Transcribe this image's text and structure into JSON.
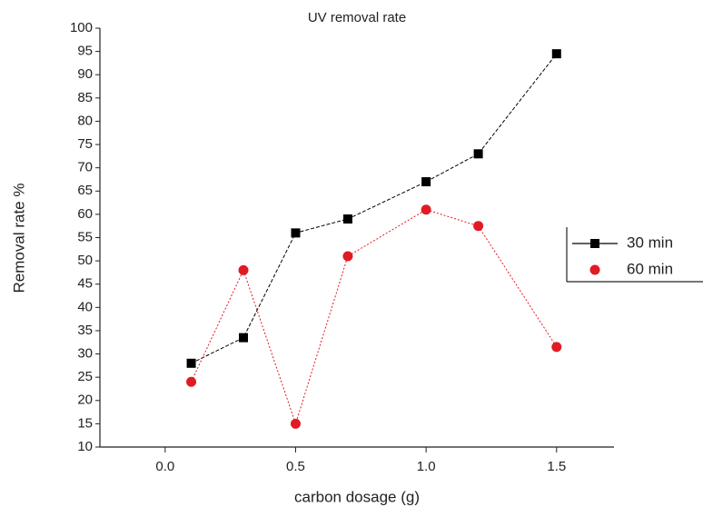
{
  "chart_data": {
    "type": "line",
    "title": "UV removal rate",
    "x_label": "carbon dosage (g)",
    "y_label": "Removal rate %",
    "x": [
      0.1,
      0.3,
      0.5,
      0.7,
      1.0,
      1.2,
      1.5
    ],
    "series": [
      {
        "name": "30 min",
        "color": "#000000",
        "marker": "square",
        "values": [
          28,
          33.5,
          56,
          59,
          67,
          73,
          94.5
        ]
      },
      {
        "name": "60 min",
        "color": "#e01b24",
        "marker": "circle",
        "values": [
          24,
          48,
          15,
          51,
          61,
          57.5,
          31.5
        ]
      }
    ],
    "xlim": [
      -0.25,
      1.72
    ],
    "xticks": [
      {
        "value": 0,
        "label": "0.0"
      },
      {
        "value": 0.5,
        "label": "0.5"
      },
      {
        "value": 1,
        "label": "1.0"
      },
      {
        "value": 1.5,
        "label": "1.5"
      }
    ],
    "ylim": [
      10,
      100
    ],
    "yticks": [
      10,
      15,
      20,
      25,
      30,
      35,
      40,
      45,
      50,
      55,
      60,
      65,
      70,
      75,
      80,
      85,
      90,
      95,
      100
    ],
    "legend": "right"
  }
}
